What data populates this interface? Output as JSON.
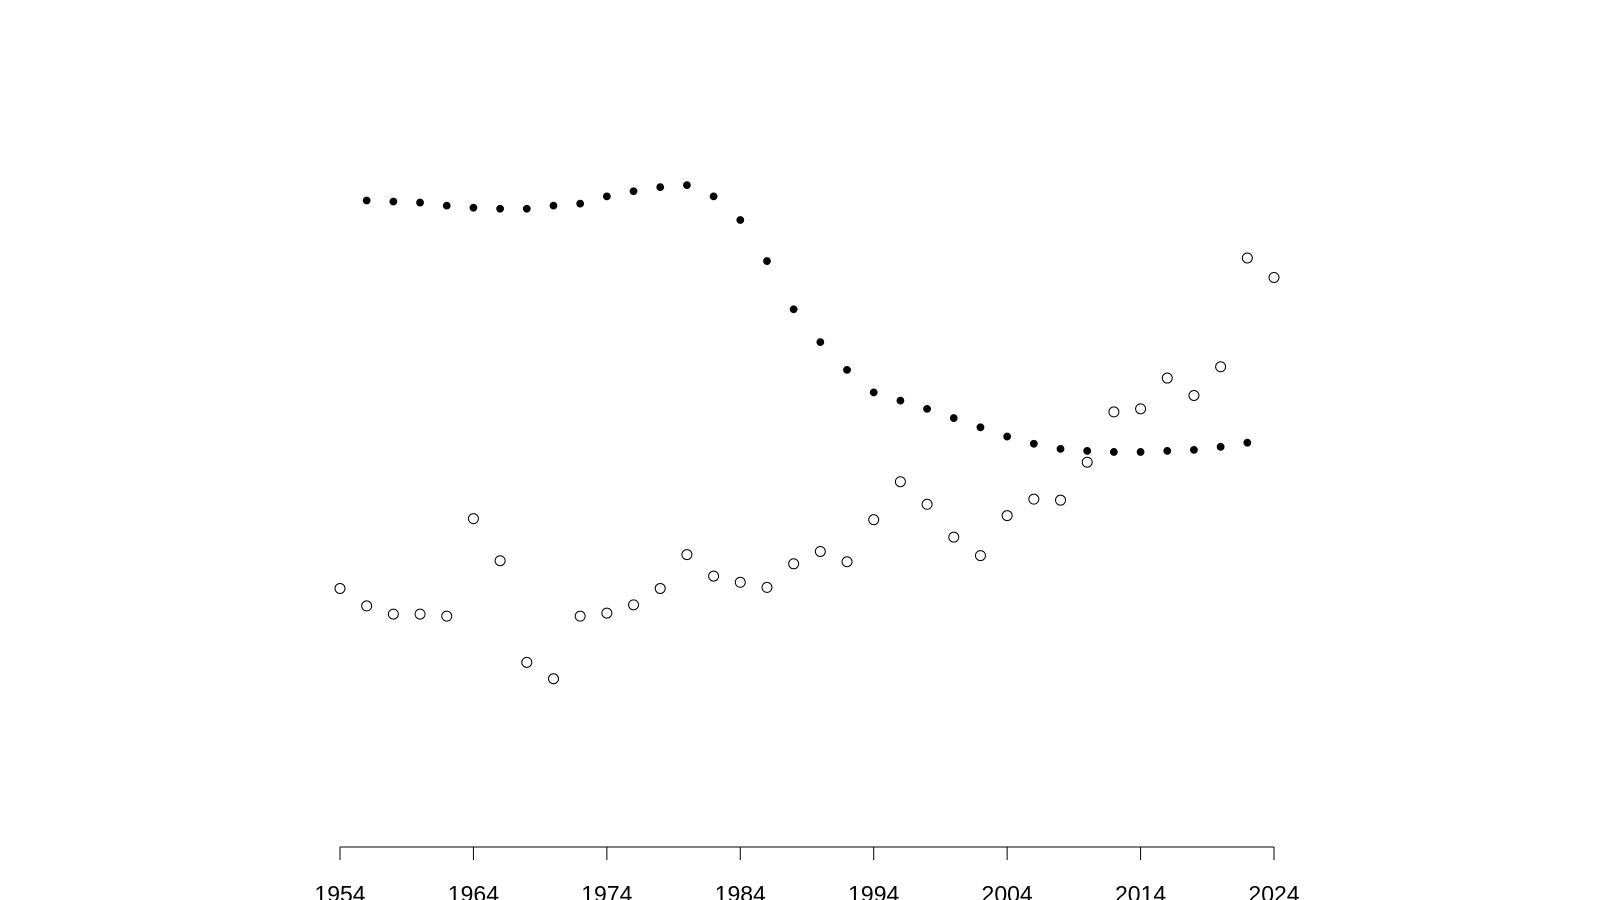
{
  "chart_data": {
    "type": "scatter",
    "xlim": [
      1954,
      2024
    ],
    "xticks": [
      1954,
      1964,
      1974,
      1984,
      1994,
      2004,
      2014,
      2024
    ],
    "ylim": [
      0,
      800
    ],
    "series": [
      {
        "marker": "open",
        "color": "#000000",
        "x": [
          1954,
          1956,
          1958,
          1960,
          1962,
          1964,
          1966,
          1968,
          1970,
          1972,
          1974,
          1976,
          1978,
          1980,
          1982,
          1984,
          1986,
          1988,
          1990,
          1992,
          1994,
          1996,
          1998,
          2000,
          2002,
          2004,
          2006,
          2008,
          2010,
          2012,
          2014,
          2016,
          2018,
          2020,
          2022,
          2024
        ],
        "values": [
          250,
          233,
          225,
          225,
          223,
          318,
          277,
          178,
          162,
          223,
          226,
          234,
          250,
          283,
          262,
          256,
          251,
          274,
          286,
          276,
          317,
          354,
          332,
          300,
          282,
          321,
          337,
          336,
          373,
          422,
          425,
          455,
          438,
          466,
          572,
          553
        ]
      },
      {
        "marker": "filled",
        "color": "#000000",
        "x": [
          1956,
          1958,
          1960,
          1962,
          1964,
          1966,
          1968,
          1970,
          1972,
          1974,
          1976,
          1978,
          1980,
          1982,
          1984,
          1986,
          1988,
          1990,
          1992,
          1994,
          1996,
          1998,
          2000,
          2002,
          2004,
          2006,
          2008,
          2010,
          2012,
          2014,
          2016,
          2018,
          2020,
          2022
        ],
        "values": [
          628,
          627,
          626,
          623,
          621,
          620,
          620,
          623,
          625,
          632,
          637,
          641,
          643,
          632,
          609,
          569,
          522,
          490,
          463,
          441,
          433,
          425,
          416,
          407,
          398,
          391,
          386,
          384,
          383,
          383,
          384,
          385,
          388,
          392
        ]
      }
    ]
  }
}
